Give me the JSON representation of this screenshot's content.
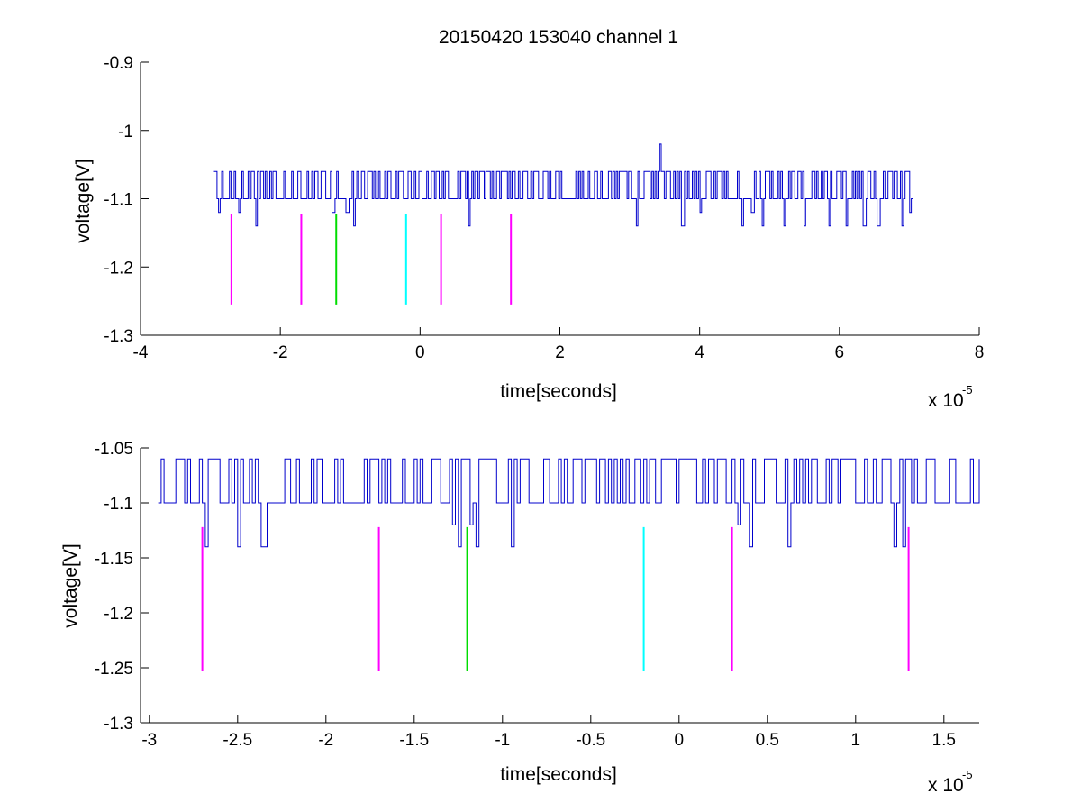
{
  "chart_data": [
    {
      "type": "line",
      "title": "20150420 153040 channel 1",
      "xlabel": "time[seconds]",
      "ylabel": "voltage[V]",
      "x_multiplier": "x 10",
      "x_multiplier_exp": "-5",
      "xlim": [
        -4,
        8
      ],
      "ylim": [
        -1.3,
        -0.9
      ],
      "xticks": [
        "-4",
        "-2",
        "0",
        "2",
        "4",
        "6",
        "8"
      ],
      "xtick_values": [
        -4,
        -2,
        0,
        2,
        4,
        6,
        8
      ],
      "yticks": [
        "-1.3",
        "-1.2",
        "-1.1",
        "-1",
        "-0.9"
      ],
      "ytick_values": [
        -1.3,
        -1.2,
        -1.1,
        -1.0,
        -0.9
      ],
      "grid": false,
      "series": [
        {
          "color": "#0000cc",
          "x_range": [
            -2.95,
            7.05
          ],
          "levels": [
            -1.06,
            -1.1
          ],
          "dips": [
            {
              "x": -2.88,
              "y": -1.12
            },
            {
              "x": -2.6,
              "y": -1.12
            },
            {
              "x": -2.35,
              "y": -1.14
            },
            {
              "x": -1.25,
              "y": -1.12
            },
            {
              "x": -1.05,
              "y": -1.12
            },
            {
              "x": -0.95,
              "y": -1.14
            },
            {
              "x": 0.7,
              "y": -1.14
            },
            {
              "x": 3.1,
              "y": -1.14
            },
            {
              "x": 3.75,
              "y": -1.14
            },
            {
              "x": 4.0,
              "y": -1.12
            },
            {
              "x": 4.6,
              "y": -1.14
            },
            {
              "x": 4.75,
              "y": -1.12
            },
            {
              "x": 4.9,
              "y": -1.14
            },
            {
              "x": 5.2,
              "y": -1.14
            },
            {
              "x": 5.5,
              "y": -1.14
            },
            {
              "x": 5.85,
              "y": -1.14
            },
            {
              "x": 6.1,
              "y": -1.14
            },
            {
              "x": 6.35,
              "y": -1.14
            },
            {
              "x": 6.55,
              "y": -1.14
            },
            {
              "x": 6.9,
              "y": -1.14
            },
            {
              "x": 7.0,
              "y": -1.12
            }
          ],
          "spikes": [
            {
              "x": 3.42,
              "y": -1.02
            }
          ]
        }
      ],
      "markers": [
        {
          "x": -2.7,
          "y_range": [
            -1.255,
            -1.122
          ],
          "color": "#ff00ff"
        },
        {
          "x": -1.7,
          "y_range": [
            -1.255,
            -1.122
          ],
          "color": "#ff00ff"
        },
        {
          "x": -1.2,
          "y_range": [
            -1.255,
            -1.122
          ],
          "color": "#00dd00"
        },
        {
          "x": -0.2,
          "y_range": [
            -1.255,
            -1.122
          ],
          "color": "#00ffff"
        },
        {
          "x": 0.3,
          "y_range": [
            -1.255,
            -1.122
          ],
          "color": "#ff00ff"
        },
        {
          "x": 1.3,
          "y_range": [
            -1.255,
            -1.122
          ],
          "color": "#ff00ff"
        }
      ]
    },
    {
      "type": "line",
      "title": "",
      "xlabel": "time[seconds]",
      "ylabel": "voltage[V]",
      "x_multiplier": "x 10",
      "x_multiplier_exp": "-5",
      "xlim": [
        -3.05,
        1.7
      ],
      "ylim": [
        -1.3,
        -1.05
      ],
      "xticks": [
        "-3",
        "-2.5",
        "-2",
        "-1.5",
        "-1",
        "-0.5",
        "0",
        "0.5",
        "1",
        "1.5"
      ],
      "xtick_values": [
        -3,
        -2.5,
        -2,
        -1.5,
        -1,
        -0.5,
        0,
        0.5,
        1,
        1.5
      ],
      "yticks": [
        "-1.3",
        "-1.25",
        "-1.2",
        "-1.15",
        "-1.1",
        "-1.05"
      ],
      "ytick_values": [
        -1.3,
        -1.25,
        -1.2,
        -1.15,
        -1.1,
        -1.05
      ],
      "grid": false,
      "series": [
        {
          "color": "#0000cc",
          "x_range": [
            -2.95,
            1.7
          ],
          "levels": [
            -1.06,
            -1.1
          ],
          "dips": [
            {
              "x": -2.68,
              "y": -1.14
            },
            {
              "x": -2.5,
              "y": -1.14
            },
            {
              "x": -2.36,
              "y": -1.14
            },
            {
              "x": -1.28,
              "y": -1.12
            },
            {
              "x": -1.25,
              "y": -1.14
            },
            {
              "x": -1.18,
              "y": -1.12
            },
            {
              "x": -1.15,
              "y": -1.14
            },
            {
              "x": -0.95,
              "y": -1.14
            },
            {
              "x": 0.33,
              "y": -1.12
            },
            {
              "x": 0.4,
              "y": -1.14
            },
            {
              "x": 0.62,
              "y": -1.14
            },
            {
              "x": 1.22,
              "y": -1.14
            },
            {
              "x": 1.27,
              "y": -1.14
            }
          ],
          "spikes": []
        }
      ],
      "markers": [
        {
          "x": -2.7,
          "y_range": [
            -1.253,
            -1.122
          ],
          "color": "#ff00ff"
        },
        {
          "x": -1.7,
          "y_range": [
            -1.253,
            -1.122
          ],
          "color": "#ff00ff"
        },
        {
          "x": -1.2,
          "y_range": [
            -1.253,
            -1.122
          ],
          "color": "#00dd00"
        },
        {
          "x": -0.2,
          "y_range": [
            -1.253,
            -1.122
          ],
          "color": "#00ffff"
        },
        {
          "x": 0.3,
          "y_range": [
            -1.253,
            -1.122
          ],
          "color": "#ff00ff"
        },
        {
          "x": 1.3,
          "y_range": [
            -1.253,
            -1.122
          ],
          "color": "#ff00ff"
        }
      ]
    }
  ]
}
